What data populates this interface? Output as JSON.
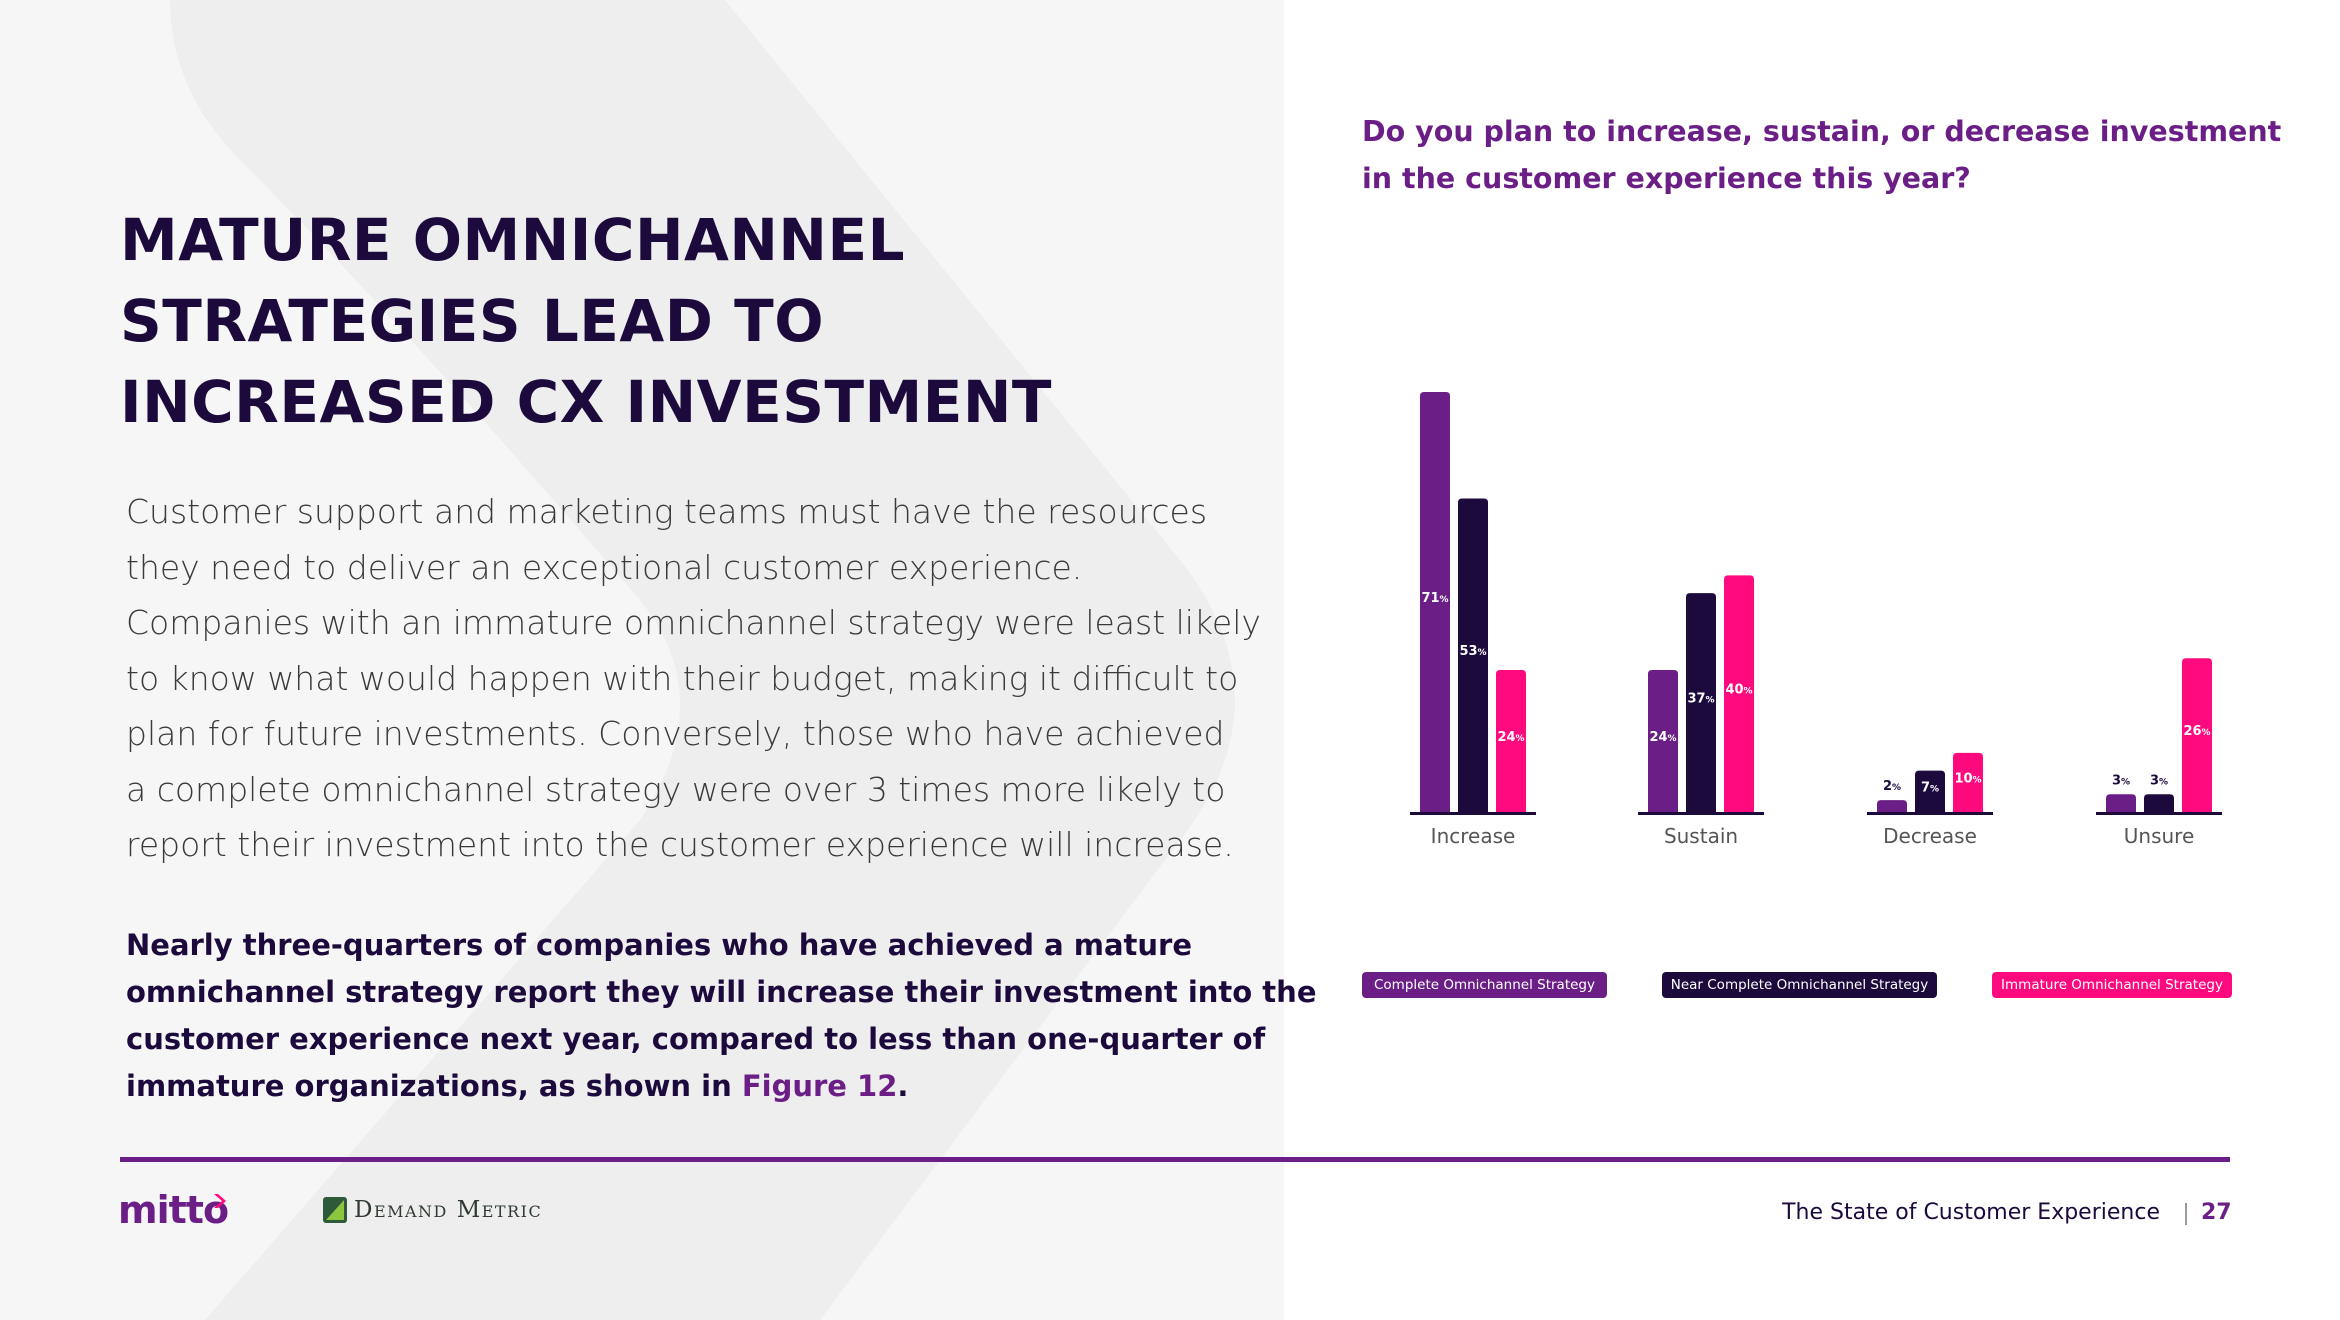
{
  "title": {
    "lines": [
      "MATURE OMNICHANNEL",
      "STRATEGIES LEAD TO",
      "INCREASED CX INVESTMENT"
    ]
  },
  "body": {
    "lines": [
      "Customer support and marketing teams must have the resources",
      "they need to deliver an exceptional customer experience.",
      "Companies with an immature omnichannel strategy were least likely",
      "to know what would happen with their budget, making it difficult to",
      "plan for future investments. Conversely, those who have achieved",
      "a complete omnichannel strategy were over 3 times more likely to",
      "report their investment into the customer experience will increase."
    ]
  },
  "highlight": {
    "lines": [
      "Nearly three-quarters of companies who have achieved a mature",
      "omnichannel strategy report they will increase their investment into the",
      "customer experience next year, compared to less than one-quarter of"
    ],
    "last_line_prefix": "immature organizations, as shown in ",
    "figure_link": "Figure 12",
    "last_line_suffix": "."
  },
  "chart_data": {
    "type": "bar",
    "title": "Do you plan to increase, sustain, or decrease investment in the customer experience this year?",
    "title_lines": [
      "Do you plan to increase, sustain, or decrease investment",
      "in the customer experience this year?"
    ],
    "categories": [
      "Increase",
      "Sustain",
      "Decrease",
      "Unsure"
    ],
    "series": [
      {
        "name": "Complete Omnichannel Strategy",
        "values": [
          71,
          24,
          2,
          3
        ],
        "color": "#6b1f86"
      },
      {
        "name": "Near Complete Omnichannel Strategy",
        "values": [
          53,
          37,
          7,
          3
        ],
        "color": "#1c0a3d"
      },
      {
        "name": "Immature Omnichannel Strategy",
        "values": [
          24,
          40,
          10,
          26
        ],
        "color": "#ff0a7e"
      }
    ],
    "value_suffix": "%",
    "ylim": [
      0,
      71
    ],
    "xlabel": "",
    "ylabel": "",
    "grid": false,
    "legend_position": "bottom"
  },
  "footer": {
    "logo_mitto": "mitto",
    "logo_demand_metric": "Demand Metric",
    "report_title": "The State of Customer Experience",
    "page_number": "27"
  },
  "colors": {
    "brand_purple": "#6b1f86",
    "dark_navy": "#1c0a3d",
    "pink": "#ff0a7e"
  }
}
